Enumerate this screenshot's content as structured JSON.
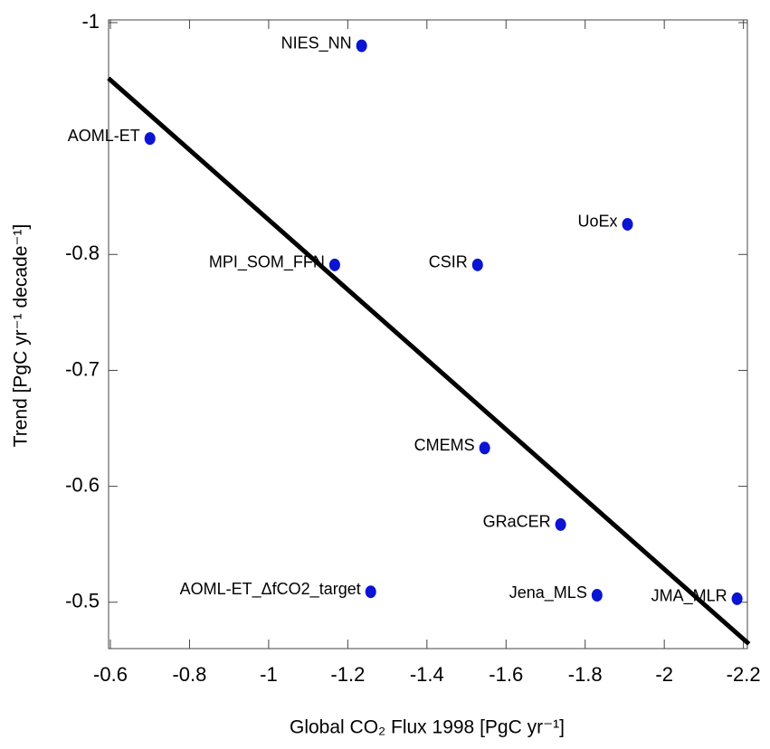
{
  "chart_data": {
    "type": "scatter",
    "xlabel": "Global CO₂ Flux 1998 [PgC yr⁻¹]",
    "ylabel": "Trend [PgC yr⁻¹ decade⁻¹]",
    "xlim": [
      -0.6,
      -2.21
    ],
    "ylim": [
      -0.46,
      -1.0
    ],
    "xticks": [
      -0.6,
      -0.8,
      -1,
      -1.2,
      -1.4,
      -1.6,
      -1.8,
      -2,
      -2.2
    ],
    "yticks": [
      -1,
      -0.8,
      -0.7,
      -0.6,
      -0.5
    ],
    "color": "#0a14d2",
    "labels": [
      "NIES_NN",
      "AOML-ET",
      "UoEx",
      "MPI_SOM_FFN",
      "CSIR",
      "CMEMS",
      "GRaCER",
      "AOML-ET_ΔfCO2_target",
      "Jena_MLS",
      "JMA_MLR"
    ],
    "x": [
      -1.235,
      -0.7,
      -1.907,
      -1.167,
      -1.528,
      -1.546,
      -1.738,
      -1.258,
      -1.83,
      -2.184
    ],
    "y": [
      -0.98,
      -0.9,
      -0.826,
      -0.791,
      -0.791,
      -0.633,
      -0.567,
      -0.509,
      -0.506,
      -0.503
    ],
    "fit": {
      "x": [
        -0.595,
        -2.214
      ],
      "y": [
        -0.952,
        -0.464
      ],
      "color": "#000000"
    }
  }
}
